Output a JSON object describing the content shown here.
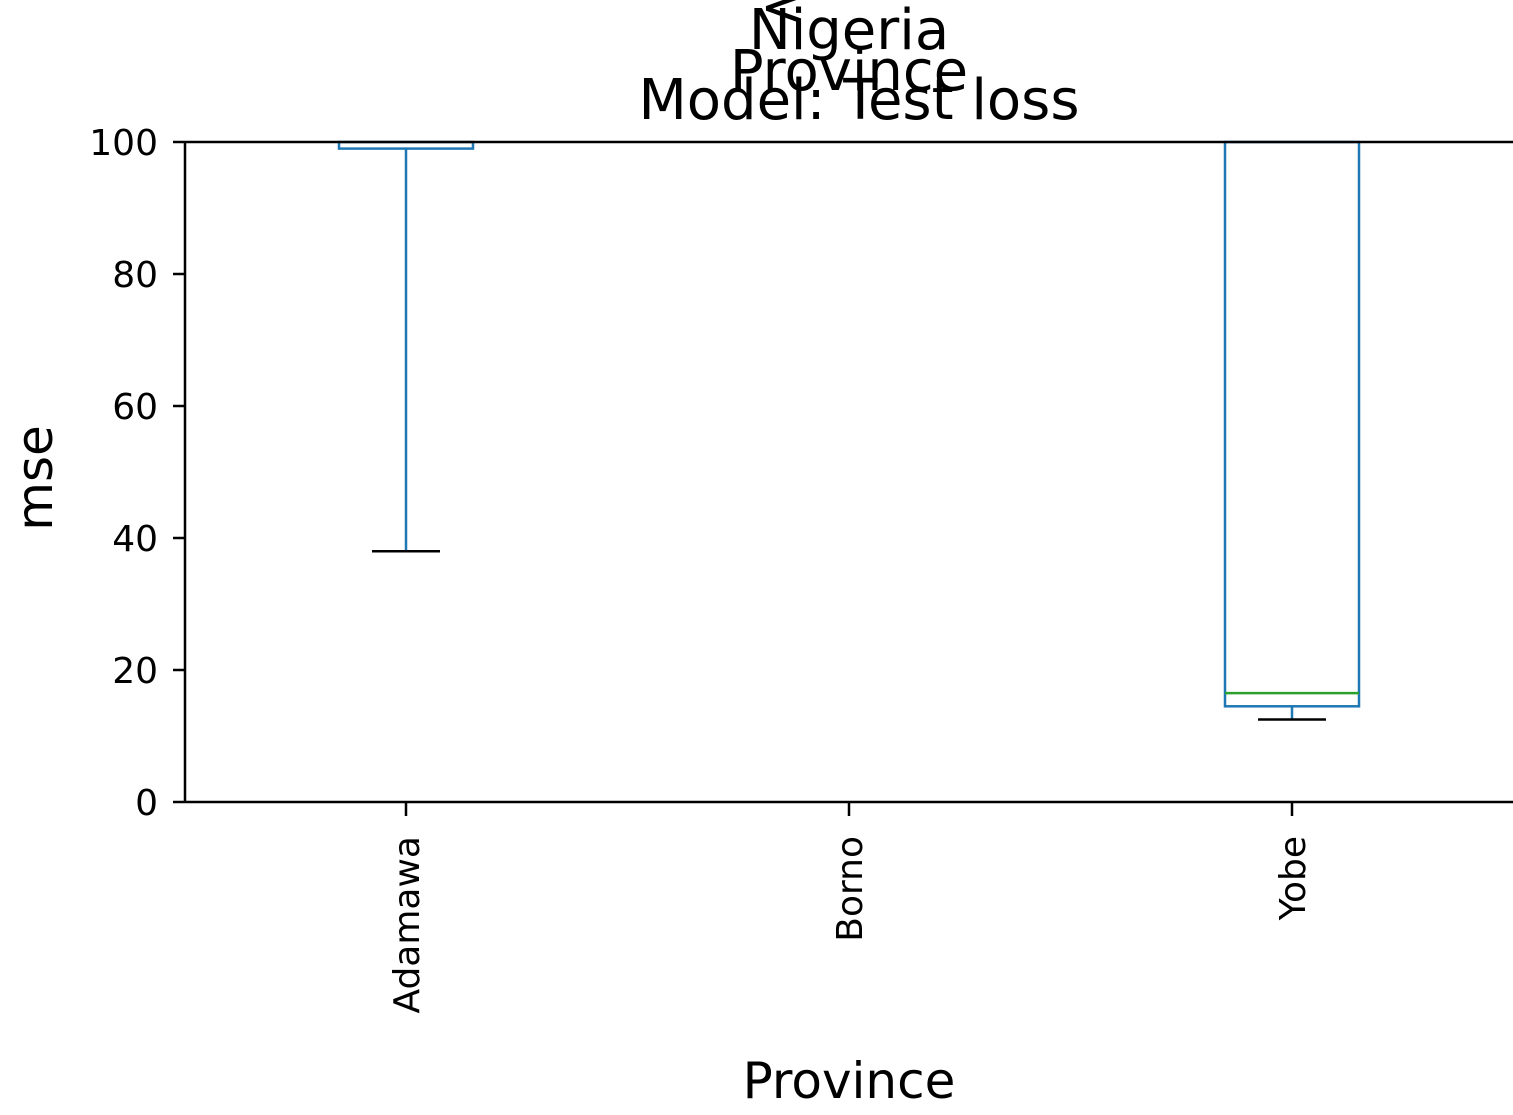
{
  "chart_data": {
    "type": "boxplot",
    "title_lines": [
      "Nigeria",
      "Province",
      "Model: Test loss"
    ],
    "title_stray_glyph": "<",
    "xlabel": "Province",
    "ylabel": "mse",
    "ylim": [
      0,
      100
    ],
    "yticks": [
      0,
      20,
      40,
      60,
      80,
      100
    ],
    "categories": [
      "Adamawa",
      "Borno",
      "Yobe"
    ],
    "boxes": [
      {
        "category": "Adamawa",
        "whisker_low": 38,
        "q1": 99,
        "median": null,
        "q3": null
      },
      {
        "category": "Borno",
        "whisker_low": null,
        "q1": null,
        "median": null,
        "q3": null
      },
      {
        "category": "Yobe",
        "whisker_low": 12.5,
        "q1": 14.5,
        "median": 16.5,
        "q3": null
      }
    ],
    "colors": {
      "box": "#1f77b4",
      "median": "#2ca02c",
      "whisker_cap": "#000000"
    },
    "grid": false,
    "legend": "none"
  }
}
